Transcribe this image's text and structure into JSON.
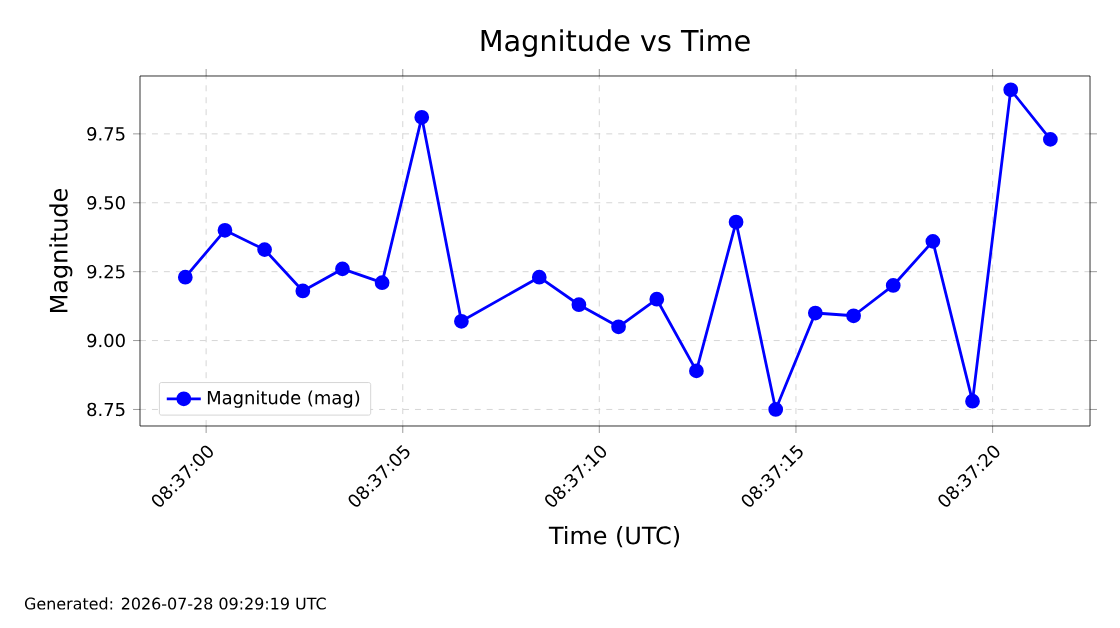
{
  "chart_data": {
    "type": "line",
    "title": "Magnitude vs Time",
    "xlabel": "Time (UTC)",
    "ylabel": "Magnitude",
    "x": [
      8.61652,
      8.6168,
      8.61708,
      8.61735,
      8.61763,
      8.61791,
      8.61819,
      8.61847,
      8.61902,
      8.6193,
      8.61958,
      8.61985,
      8.62013,
      8.62041,
      8.62069,
      8.62097,
      8.62124,
      8.62152,
      8.6218,
      8.62208,
      8.62235,
      8.62263
    ],
    "series": [
      {
        "name": "Magnitude (mag)",
        "color": "#0000ff",
        "values": [
          9.23,
          9.4,
          9.33,
          9.18,
          9.26,
          9.21,
          9.81,
          9.07,
          9.23,
          9.13,
          9.05,
          9.15,
          8.89,
          9.43,
          8.75,
          9.1,
          9.09,
          9.2,
          9.36,
          8.78,
          9.91,
          9.73
        ]
      }
    ],
    "xlim": [
      8.6162,
      8.62291
    ],
    "ylim": [
      8.69,
      9.96
    ],
    "xticks": [
      {
        "value": 8.616667,
        "label": "08:37:00"
      },
      {
        "value": 8.618056,
        "label": "08:37:05"
      },
      {
        "value": 8.619444,
        "label": "08:37:10"
      },
      {
        "value": 8.620833,
        "label": "08:37:15"
      },
      {
        "value": 8.622222,
        "label": "08:37:20"
      }
    ],
    "yticks": [
      8.75,
      {
        "value": 9.0,
        "label": "9.00"
      },
      9.25,
      {
        "value": 9.5,
        "label": "9.50"
      },
      9.75
    ],
    "grid": true,
    "legend": "bottom left",
    "marker": "circle",
    "line_style": "solid",
    "annotations": [
      "Generated: 2026-07-28 09:29:19 UTC"
    ]
  }
}
